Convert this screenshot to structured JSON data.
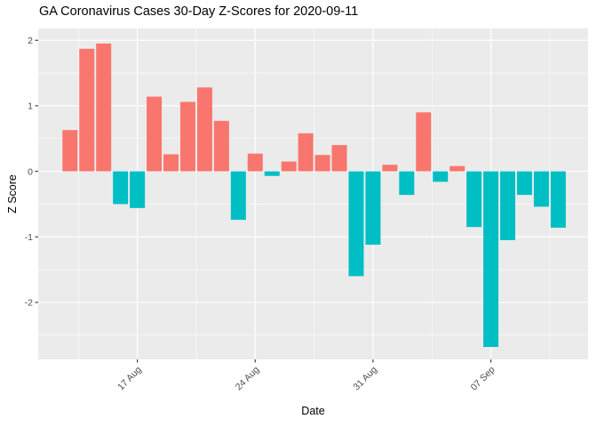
{
  "chart_data": {
    "type": "bar",
    "title": "GA Coronavirus Cases 30-Day Z-Scores for 2020-09-11",
    "xlabel": "Date",
    "ylabel": "Z Score",
    "ylim": [
      -2.87,
      2.18
    ],
    "grid": "on",
    "legend": "none",
    "y_ticks": [
      -2,
      -1,
      0,
      1,
      2
    ],
    "x_ticks": [
      {
        "label": "17 Aug",
        "day": 4
      },
      {
        "label": "24 Aug",
        "day": 11
      },
      {
        "label": "31 Aug",
        "day": 18
      },
      {
        "label": "07 Sep",
        "day": 25
      }
    ],
    "dates": [
      "2020-08-13",
      "2020-08-14",
      "2020-08-15",
      "2020-08-16",
      "2020-08-17",
      "2020-08-18",
      "2020-08-19",
      "2020-08-20",
      "2020-08-21",
      "2020-08-22",
      "2020-08-23",
      "2020-08-24",
      "2020-08-25",
      "2020-08-26",
      "2020-08-27",
      "2020-08-28",
      "2020-08-29",
      "2020-08-30",
      "2020-08-31",
      "2020-09-01",
      "2020-09-02",
      "2020-09-03",
      "2020-09-04",
      "2020-09-05",
      "2020-09-06",
      "2020-09-07",
      "2020-09-08",
      "2020-09-09",
      "2020-09-10",
      "2020-09-11"
    ],
    "values": [
      0.63,
      1.87,
      1.95,
      -0.5,
      -0.56,
      1.14,
      0.26,
      1.06,
      1.28,
      0.77,
      -0.74,
      0.27,
      -0.07,
      0.15,
      0.58,
      0.25,
      0.4,
      -1.6,
      -1.12,
      0.1,
      -0.36,
      0.9,
      -0.16,
      0.08,
      -0.85,
      -2.68,
      -1.05,
      -0.36,
      -0.54,
      -0.86
    ],
    "colors": {
      "positive": "#F8766D",
      "negative": "#00BFC4",
      "panel_background": "#EBEBEB",
      "gridline": "#FFFFFF",
      "tick_mark": "#333333",
      "tick_label": "#4D4D4D",
      "text": "#000000"
    }
  }
}
